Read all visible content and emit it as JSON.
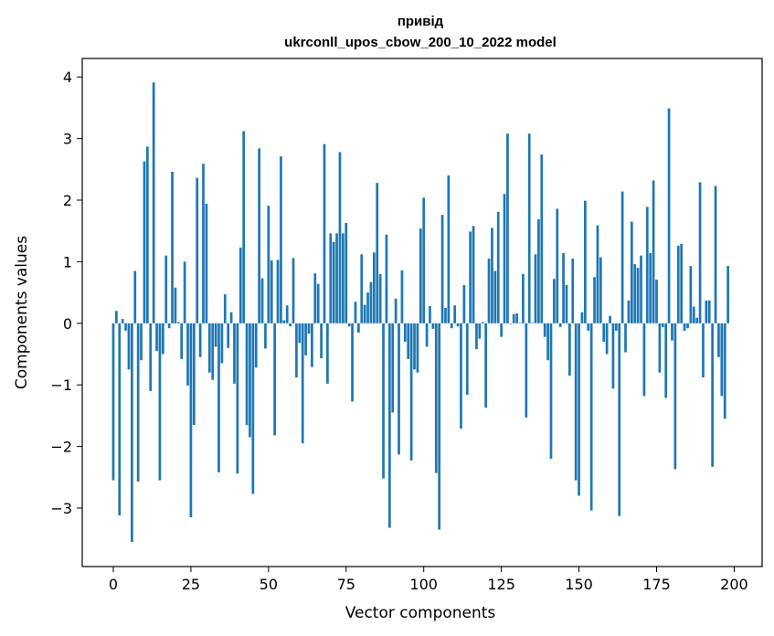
{
  "chart_data": {
    "type": "bar",
    "title": [
      "привід",
      "ukrconll_upos_cbow_200_10_2022 model"
    ],
    "xlabel": "Vector components",
    "ylabel": "Components values",
    "xlim": [
      -10,
      209
    ],
    "ylim": [
      -3.95,
      4.3
    ],
    "xticks": [
      0,
      25,
      50,
      75,
      100,
      125,
      150,
      175,
      200
    ],
    "yticks": [
      -3,
      -2,
      -1,
      0,
      1,
      2,
      3,
      4
    ],
    "bar_color": "#1f77b4",
    "grid": false,
    "values": [
      -2.55,
      0.2,
      -3.12,
      0.07,
      -0.12,
      -0.75,
      -3.55,
      0.85,
      -2.57,
      -0.6,
      2.63,
      2.87,
      -1.1,
      3.91,
      -0.45,
      -2.55,
      -0.5,
      1.1,
      -0.08,
      2.46,
      0.58,
      0.02,
      -0.58,
      1.0,
      -1.01,
      -3.15,
      -1.65,
      2.36,
      -0.55,
      2.59,
      1.94,
      -0.8,
      -0.92,
      -0.38,
      -2.42,
      -0.65,
      0.47,
      -0.4,
      0.18,
      -0.98,
      -2.44,
      1.23,
      3.12,
      -1.65,
      -1.85,
      -2.77,
      -0.72,
      2.84,
      0.73,
      -0.41,
      1.91,
      1.02,
      -1.82,
      1.03,
      2.71,
      0.05,
      0.29,
      -0.05,
      1.06,
      -0.88,
      -0.32,
      -1.95,
      -0.52,
      -0.17,
      -0.71,
      0.81,
      0.64,
      -0.57,
      2.91,
      -0.98,
      1.46,
      1.32,
      1.46,
      2.78,
      1.46,
      1.63,
      -0.05,
      -1.27,
      0.35,
      -0.15,
      1.12,
      0.3,
      0.5,
      0.67,
      1.15,
      2.28,
      0.8,
      -2.52,
      1.44,
      -3.32,
      -1.45,
      0.4,
      -2.13,
      0.86,
      -0.3,
      -0.58,
      -2.23,
      -0.75,
      -0.8,
      1.54,
      2.04,
      -0.38,
      0.28,
      -0.09,
      -2.43,
      -3.35,
      1.76,
      0.25,
      2.4,
      -0.08,
      0.29,
      -0.05,
      -1.71,
      0.62,
      -1.16,
      1.49,
      1.58,
      -0.42,
      -0.25,
      0.02,
      -1.37,
      1.05,
      1.55,
      0.85,
      1.81,
      -0.22,
      2.1,
      3.08,
      -0.01,
      0.15,
      0.16,
      0.01,
      0.8,
      -1.53,
      3.08,
      0.01,
      1.12,
      1.69,
      2.74,
      -0.22,
      -0.6,
      -2.2,
      0.72,
      1.86,
      -0.06,
      1.14,
      0.62,
      -0.85,
      1.05,
      -2.55,
      -2.8,
      0.18,
      1.99,
      -0.12,
      -3.04,
      0.75,
      1.59,
      1.07,
      -0.3,
      -0.5,
      0.12,
      -1.06,
      -0.12,
      -3.13,
      2.14,
      -0.47,
      0.37,
      1.65,
      0.96,
      0.9,
      1.1,
      -1.18,
      1.89,
      1.14,
      2.32,
      0.71,
      -0.8,
      -0.06,
      -1.21,
      3.49,
      -0.28,
      -2.37,
      1.26,
      1.29,
      -0.12,
      -0.08,
      0.93,
      0.27,
      0.09,
      2.29,
      -0.88,
      0.37,
      0.37,
      -2.33,
      2.23,
      -0.55,
      -1.18,
      -1.55,
      0.93
    ]
  }
}
